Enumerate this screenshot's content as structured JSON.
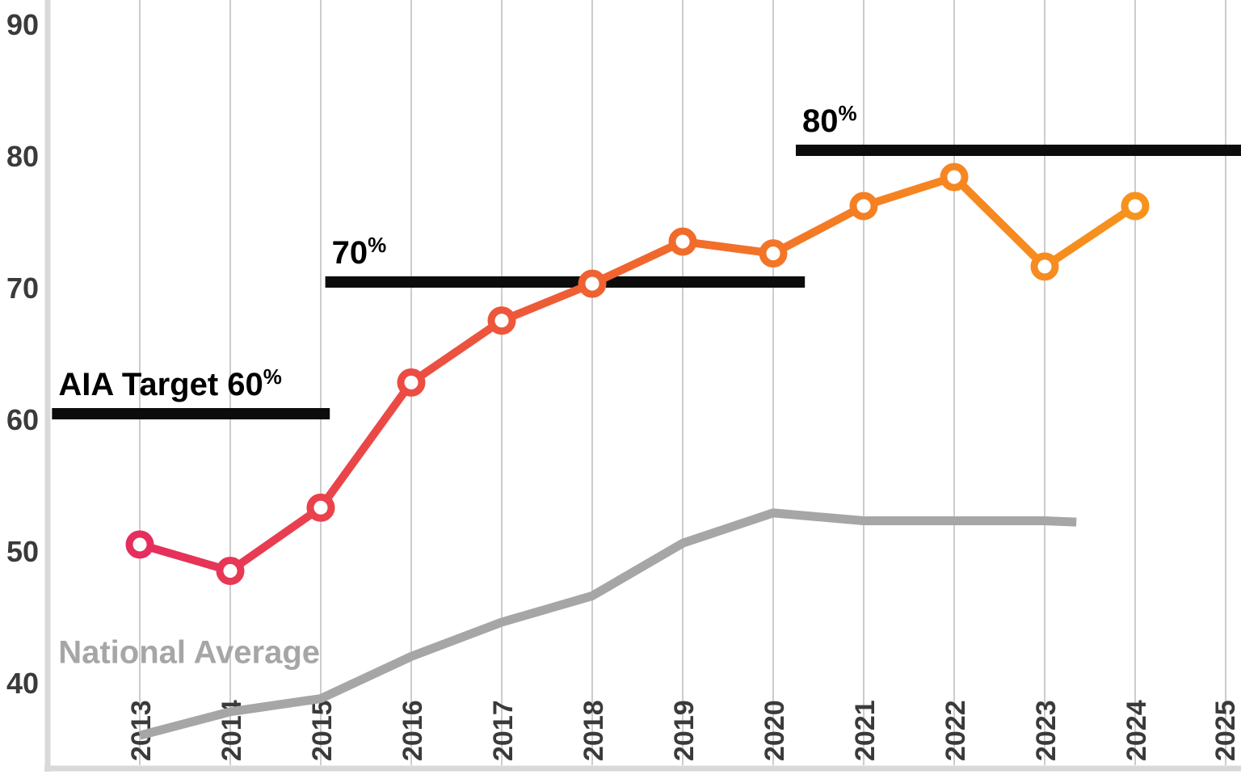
{
  "chart_data": {
    "type": "line",
    "title": "",
    "xlabel": "",
    "ylabel": "",
    "grid": "vertical",
    "x_ticks": [
      2013,
      2014,
      2015,
      2016,
      2017,
      2018,
      2019,
      2020,
      2021,
      2022,
      2023,
      2024,
      2025
    ],
    "y_ticks": [
      40,
      50,
      60,
      70,
      80,
      90
    ],
    "xlim": [
      2012,
      2025.2
    ],
    "ylim": [
      33.6,
      91.8
    ],
    "series": [
      {
        "name": "reported-percentage",
        "label": "",
        "marker": "circle",
        "stroke": "gradient",
        "x": [
          2013,
          2014,
          2015,
          2016,
          2017,
          2018,
          2019,
          2020,
          2021,
          2022,
          2023,
          2024
        ],
        "values": [
          50.5,
          48.5,
          53.3,
          62.8,
          67.5,
          70.3,
          73.5,
          72.6,
          76.2,
          78.4,
          71.6,
          76.2
        ]
      },
      {
        "name": "national-average",
        "label": "National Average",
        "marker": "none",
        "stroke": "solid-gray",
        "x": [
          2013,
          2014,
          2015,
          2016,
          2017,
          2018,
          2019,
          2020,
          2021,
          2022,
          2023,
          2023.35
        ],
        "values": [
          36.0,
          37.8,
          38.8,
          42.0,
          44.6,
          46.6,
          50.6,
          52.9,
          52.3,
          52.3,
          52.3,
          52.2
        ]
      }
    ],
    "target_bars": [
      {
        "label": "AIA Target 60",
        "suffix": "%",
        "value": 60,
        "from_x": 2012.03,
        "to_x": 2015.1
      },
      {
        "label": "70",
        "suffix": "%",
        "value": 70,
        "from_x": 2015.05,
        "to_x": 2020.35
      },
      {
        "label": "80",
        "suffix": "%",
        "value": 80,
        "from_x": 2020.25,
        "to_x": 2025.4
      }
    ],
    "series_label_annotation": {
      "text": "National Average",
      "x": 2012.1,
      "y": 41.5
    }
  },
  "colors": {
    "line_gradient": [
      "#e52d5e",
      "#eb4a45",
      "#f0662e",
      "#f58222",
      "#f7921d"
    ],
    "national_average": "#a6a6a6",
    "target_bar": "#0c0c0c",
    "gridline": "#cccccc",
    "axis": "#d9d9d9",
    "tick_label": "#3a3a3a",
    "annotation": "#000000",
    "marker_fill": "#ffffff",
    "background": "#ffffff"
  }
}
